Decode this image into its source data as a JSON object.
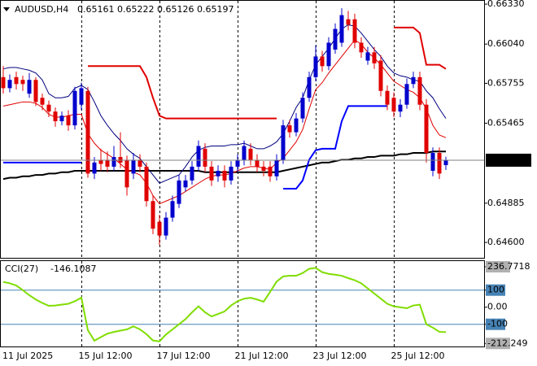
{
  "chart_data": {
    "type": "candlestick",
    "title": "AUDUSD,H4",
    "bull_color": "#0000cd",
    "bear_color": "#e00000",
    "categories": [
      "11 Jul 2025",
      null,
      null,
      null,
      null,
      null,
      null,
      null,
      null,
      null,
      null,
      null,
      "15 Jul 12:00",
      null,
      null,
      null,
      null,
      null,
      null,
      null,
      null,
      null,
      null,
      null,
      "17 Jul 12:00",
      null,
      null,
      null,
      null,
      null,
      null,
      null,
      null,
      null,
      null,
      null,
      "21 Jul 12:00",
      null,
      null,
      null,
      null,
      null,
      null,
      null,
      null,
      null,
      null,
      null,
      "23 Jul 12:00",
      null,
      null,
      null,
      null,
      null,
      null,
      null,
      null,
      null,
      null,
      null,
      "25 Jul 12:00",
      null,
      null,
      null,
      null,
      null,
      null,
      null,
      null
    ],
    "open": [
      0.658,
      0.6572,
      0.658,
      0.6578,
      0.6568,
      0.6578,
      0.6565,
      0.656,
      0.6555,
      0.6548,
      0.6552,
      0.6545,
      0.656,
      0.657,
      0.651,
      0.652,
      0.652,
      0.6515,
      0.6522,
      0.652,
      0.651,
      0.652,
      0.6515,
      0.649,
      0.6475,
      0.6465,
      0.6478,
      0.6488,
      0.65,
      0.6505,
      0.6515,
      0.6528,
      0.6515,
      0.6508,
      0.6512,
      0.6505,
      0.6515,
      0.652,
      0.6528,
      0.652,
      0.6515,
      0.6515,
      0.6508,
      0.652,
      0.6545,
      0.654,
      0.655,
      0.6565,
      0.658,
      0.6595,
      0.6588,
      0.66,
      0.6605,
      0.6622,
      0.6622,
      0.6605,
      0.6592,
      0.6598,
      0.6592,
      0.657,
      0.6565,
      0.6555,
      0.656,
      0.6575,
      0.658,
      0.656,
      0.6512,
      0.6525,
      0.65161
    ],
    "high": [
      0.6588,
      0.6582,
      0.6584,
      0.6581,
      0.6583,
      0.658,
      0.6568,
      0.6563,
      0.6558,
      0.6555,
      0.6556,
      0.6573,
      0.6576,
      0.6573,
      0.6522,
      0.6528,
      0.6526,
      0.653,
      0.654,
      0.6523,
      0.6525,
      0.6524,
      0.6518,
      0.6494,
      0.648,
      0.6482,
      0.6494,
      0.6509,
      0.6509,
      0.6519,
      0.6534,
      0.6532,
      0.6519,
      0.6516,
      0.6516,
      0.6519,
      0.6524,
      0.6534,
      0.6532,
      0.6524,
      0.6519,
      0.6519,
      0.6524,
      0.6549,
      0.6549,
      0.6554,
      0.6569,
      0.6584,
      0.6603,
      0.6599,
      0.6609,
      0.6619,
      0.663,
      0.6628,
      0.6626,
      0.6609,
      0.6602,
      0.6602,
      0.6596,
      0.6574,
      0.6569,
      0.6564,
      0.6579,
      0.6584,
      0.6584,
      0.6564,
      0.6529,
      0.6529,
      0.65222
    ],
    "low": [
      0.6568,
      0.6569,
      0.6571,
      0.657,
      0.6565,
      0.6559,
      0.6556,
      0.6551,
      0.6544,
      0.6545,
      0.6541,
      0.6542,
      0.6556,
      0.6507,
      0.6506,
      0.6512,
      0.6511,
      0.6512,
      0.6514,
      0.6494,
      0.6506,
      0.6511,
      0.6486,
      0.6466,
      0.6458,
      0.6462,
      0.6475,
      0.6485,
      0.6497,
      0.6502,
      0.6512,
      0.6511,
      0.6501,
      0.6504,
      0.65,
      0.6502,
      0.6511,
      0.6516,
      0.6516,
      0.6511,
      0.6508,
      0.6504,
      0.6505,
      0.6517,
      0.6536,
      0.6537,
      0.6547,
      0.6562,
      0.6577,
      0.6584,
      0.6585,
      0.6597,
      0.6602,
      0.6614,
      0.6601,
      0.6594,
      0.6589,
      0.6586,
      0.6566,
      0.6556,
      0.6551,
      0.6551,
      0.6557,
      0.6572,
      0.6556,
      0.6518,
      0.6508,
      0.6506,
      0.65126
    ],
    "close": [
      0.6572,
      0.6578,
      0.6575,
      0.6575,
      0.6578,
      0.6562,
      0.656,
      0.6555,
      0.6548,
      0.6552,
      0.6545,
      0.657,
      0.6572,
      0.651,
      0.6518,
      0.6517,
      0.6515,
      0.6522,
      0.6518,
      0.65,
      0.652,
      0.6515,
      0.649,
      0.647,
      0.6465,
      0.6478,
      0.649,
      0.6505,
      0.6505,
      0.6515,
      0.653,
      0.6515,
      0.6505,
      0.6512,
      0.6505,
      0.6515,
      0.652,
      0.653,
      0.652,
      0.6515,
      0.6512,
      0.6508,
      0.652,
      0.6545,
      0.654,
      0.655,
      0.6565,
      0.658,
      0.6595,
      0.6588,
      0.6605,
      0.6615,
      0.6625,
      0.6618,
      0.6605,
      0.6598,
      0.6598,
      0.659,
      0.657,
      0.656,
      0.6555,
      0.656,
      0.6575,
      0.658,
      0.656,
      0.6525,
      0.6525,
      0.651,
      0.65197
    ],
    "lines": [
      {
        "color": "#000000",
        "width": 2,
        "values": [
          0.6506,
          0.6507,
          0.6507,
          0.6508,
          0.6508,
          0.6509,
          0.6509,
          0.651,
          0.651,
          0.6511,
          0.6511,
          0.6512,
          0.6512,
          0.6512,
          0.6512,
          0.6512,
          0.6512,
          0.6512,
          0.6512,
          0.6512,
          0.6512,
          0.6512,
          0.6512,
          0.6512,
          0.6512,
          0.6512,
          0.6512,
          0.6512,
          0.6512,
          0.6512,
          0.6512,
          0.6511,
          0.6511,
          0.6511,
          0.6511,
          0.6511,
          0.6511,
          0.6511,
          0.6511,
          0.6511,
          0.6511,
          0.6511,
          0.6511,
          0.6512,
          0.6513,
          0.6514,
          0.6515,
          0.6516,
          0.6517,
          0.6518,
          0.6518,
          0.6519,
          0.652,
          0.652,
          0.6521,
          0.6521,
          0.6522,
          0.6522,
          0.6523,
          0.6523,
          0.6523,
          0.6524,
          0.6524,
          0.6525,
          0.6525,
          0.6525,
          0.6526,
          0.6526,
          0.6526
        ]
      },
      {
        "color": "#000080",
        "width": 1,
        "values": [
          0.6586,
          0.6587,
          0.6587,
          0.6586,
          0.6585,
          0.6583,
          0.6578,
          0.6568,
          0.6565,
          0.6565,
          0.6566,
          0.6572,
          0.6574,
          0.6571,
          0.6562,
          0.6552,
          0.6545,
          0.6539,
          0.6534,
          0.6528,
          0.6524,
          0.6521,
          0.6515,
          0.6509,
          0.6503,
          0.6505,
          0.6507,
          0.6509,
          0.6515,
          0.6522,
          0.6527,
          0.6529,
          0.653,
          0.653,
          0.653,
          0.6531,
          0.6531,
          0.6532,
          0.653,
          0.6528,
          0.6528,
          0.653,
          0.6533,
          0.6539,
          0.6548,
          0.6558,
          0.6565,
          0.6578,
          0.6589,
          0.6595,
          0.6601,
          0.6608,
          0.6615,
          0.6618,
          0.6617,
          0.6612,
          0.6606,
          0.66,
          0.6595,
          0.6588,
          0.6583,
          0.6581,
          0.658,
          0.6578,
          0.6577,
          0.657,
          0.6565,
          0.6557,
          0.655
        ]
      },
      {
        "color": "#e00000",
        "width": 1,
        "values": [
          0.6559,
          0.656,
          0.6561,
          0.6562,
          0.6562,
          0.6561,
          0.6558,
          0.6553,
          0.6551,
          0.6551,
          0.6552,
          0.6553,
          0.6553,
          0.6539,
          0.6532,
          0.6527,
          0.6524,
          0.6521,
          0.6517,
          0.6513,
          0.6511,
          0.6509,
          0.6503,
          0.6494,
          0.6488,
          0.649,
          0.6492,
          0.6494,
          0.6497,
          0.65,
          0.6503,
          0.6506,
          0.6508,
          0.6509,
          0.6509,
          0.651,
          0.6512,
          0.6514,
          0.6515,
          0.6515,
          0.6514,
          0.6513,
          0.6518,
          0.6521,
          0.6527,
          0.6533,
          0.6542,
          0.6557,
          0.6571,
          0.6576,
          0.6583,
          0.6589,
          0.6595,
          0.6601,
          0.6607,
          0.6604,
          0.6598,
          0.6594,
          0.6589,
          0.6583,
          0.6577,
          0.6574,
          0.6571,
          0.6569,
          0.6565,
          0.6557,
          0.6545,
          0.6538,
          0.6536
        ]
      },
      {
        "color": "#e00000",
        "width": 2,
        "values": [
          null,
          null,
          null,
          null,
          null,
          null,
          null,
          null,
          null,
          null,
          null,
          null,
          null,
          0.6588,
          0.6588,
          0.6588,
          0.6588,
          0.6588,
          0.6588,
          0.6588,
          0.6588,
          0.6588,
          0.658,
          0.6565,
          0.6552,
          0.655,
          0.655,
          0.655,
          0.655,
          0.655,
          0.655,
          0.655,
          0.655,
          0.655,
          0.655,
          0.655,
          0.655,
          0.655,
          0.655,
          0.655,
          0.655,
          0.655,
          0.655,
          null,
          null,
          null,
          null,
          null,
          null,
          null,
          null,
          null,
          null,
          null,
          null,
          null,
          null,
          null,
          null,
          null,
          0.6616,
          0.6616,
          0.6616,
          0.6616,
          0.6612,
          0.6589,
          0.6589,
          0.6589,
          0.6586
        ]
      },
      {
        "color": "#0000ff",
        "width": 2,
        "values": [
          0.6518,
          0.6518,
          0.6518,
          0.6518,
          0.6518,
          0.6518,
          0.6518,
          0.6518,
          0.6518,
          0.6518,
          0.6518,
          0.6518,
          0.6518,
          null,
          null,
          null,
          null,
          null,
          null,
          null,
          null,
          null,
          null,
          null,
          null,
          null,
          null,
          null,
          null,
          null,
          null,
          null,
          null,
          null,
          null,
          null,
          null,
          null,
          null,
          null,
          null,
          null,
          null,
          0.6499,
          0.6499,
          0.6499,
          0.6505,
          0.652,
          0.6527,
          0.6528,
          0.6528,
          0.6528,
          0.6548,
          0.6559,
          0.6559,
          0.6559,
          0.6559,
          0.6559,
          0.6559,
          0.6559,
          null,
          null,
          null,
          null,
          null,
          null,
          null,
          null,
          null
        ]
      }
    ],
    "ylim": [
      0.645,
      0.6636
    ],
    "yticks": [
      {
        "value": 0.6633,
        "label": "0.66330"
      },
      {
        "value": 0.6604,
        "label": "0.66040"
      },
      0.65755,
      0.65465,
      0.64885,
      {
        "value": 0.646,
        "label": "0.64600"
      }
    ],
    "indicator": {
      "name": "CCI(27)",
      "color": "#80dd00",
      "values": [
        148,
        140,
        127,
        100,
        70,
        45,
        25,
        8,
        10,
        15,
        20,
        35,
        56,
        -135,
        -196,
        -175,
        -155,
        -145,
        -137,
        -130,
        -112,
        -130,
        -158,
        -195,
        -200,
        -160,
        -130,
        -100,
        -70,
        -30,
        5,
        -30,
        -54,
        -40,
        -25,
        10,
        35,
        50,
        55,
        45,
        32,
        90,
        150,
        180,
        184,
        184,
        200,
        225,
        230,
        205,
        195,
        190,
        184,
        170,
        158,
        140,
        110,
        80,
        50,
        20,
        5,
        0,
        -6,
        10,
        15,
        -100,
        -120,
        -144,
        -146.1087
      ],
      "ylim": [
        -230,
        270
      ],
      "yticks": [
        236.7718,
        100,
        {
          "value": 0,
          "label": "0.00"
        },
        -100,
        -212.249
      ],
      "levels": [
        100,
        -100
      ]
    }
  }
}
